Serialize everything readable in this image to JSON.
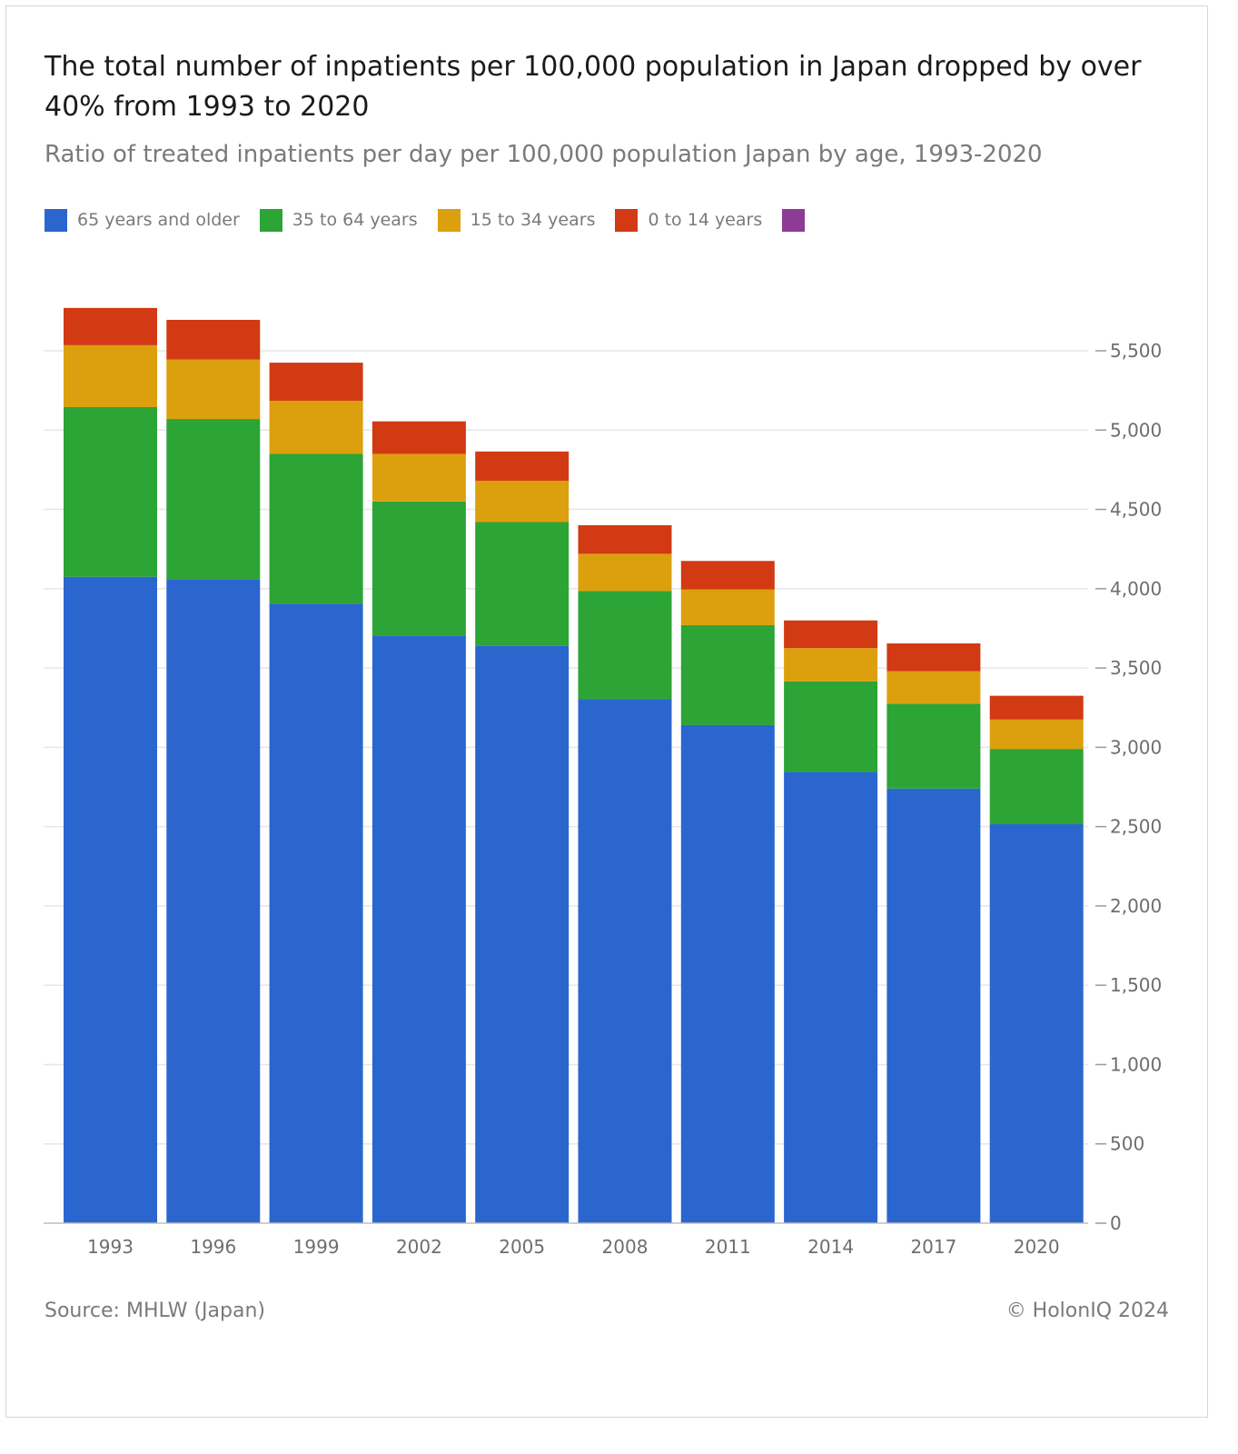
{
  "chart_data": {
    "type": "bar",
    "stacked": true,
    "title": "The total number of inpatients per 100,000 population in Japan dropped by over 40% from 1993 to 2020",
    "subtitle": "Ratio of treated inpatients per day per 100,000 population Japan by age, 1993-2020",
    "xlabel": "",
    "ylabel": "",
    "categories": [
      "1993",
      "1996",
      "1999",
      "2002",
      "2005",
      "2008",
      "2011",
      "2014",
      "2017",
      "2020"
    ],
    "series": [
      {
        "name": "65 years and older",
        "color": "#2b66cf",
        "values": [
          4075,
          4060,
          3905,
          3705,
          3640,
          3305,
          3140,
          2845,
          2740,
          2515
        ]
      },
      {
        "name": "35 to 64 years",
        "color": "#2ca436",
        "values": [
          1070,
          1010,
          945,
          845,
          780,
          680,
          630,
          570,
          535,
          475
        ]
      },
      {
        "name": "15 to 34 years",
        "color": "#dca00e",
        "values": [
          390,
          375,
          335,
          300,
          260,
          235,
          225,
          210,
          205,
          185
        ]
      },
      {
        "name": "0 to 14 years",
        "color": "#d23a13",
        "values": [
          235,
          250,
          240,
          205,
          185,
          180,
          180,
          175,
          175,
          150
        ]
      }
    ],
    "extra_legend_swatch_color": "#8e3b96",
    "ylim": [
      0,
      5500
    ],
    "y_ticks": [
      0,
      500,
      1000,
      1500,
      2000,
      2500,
      3000,
      3500,
      4000,
      4500,
      5000,
      5500
    ],
    "y_tick_labels": [
      "0",
      "500",
      "1,000",
      "1,500",
      "2,000",
      "2,500",
      "3,000",
      "3,500",
      "4,000",
      "4,500",
      "5,000",
      "5,500"
    ],
    "y_axis_position": "right",
    "grid": true,
    "legend_position": "top-left"
  },
  "footer": {
    "source": "Source: MHLW (Japan)",
    "copyright": "© HolonIQ 2024"
  }
}
